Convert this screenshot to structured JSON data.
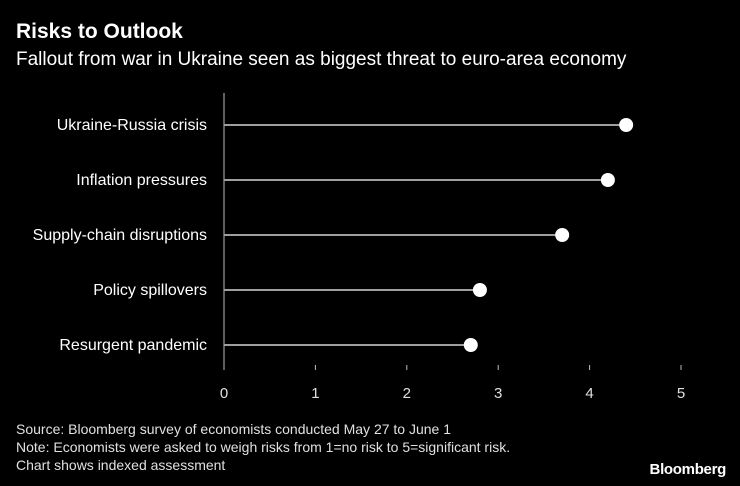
{
  "chart_data": {
    "type": "lollipop",
    "title": "Risks to Outlook",
    "subtitle": "Fallout from war in Ukraine seen as biggest threat to euro-area economy",
    "categories": [
      "Ukraine-Russia crisis",
      "Inflation pressures",
      "Supply-chain disruptions",
      "Policy spillovers",
      "Resurgent pandemic"
    ],
    "values": [
      4.4,
      4.2,
      3.7,
      2.8,
      2.7
    ],
    "x_ticks": [
      "0",
      "1",
      "2",
      "3",
      "4",
      "5"
    ],
    "xlim": [
      0,
      5
    ],
    "xlabel": "",
    "ylabel": ""
  },
  "footer": {
    "source": "Source: Bloomberg survey of economists conducted May 27 to June 1",
    "note": "Note: Economists were asked to weigh risks from 1=no risk to 5=significant risk.",
    "note2": "Chart shows indexed assessment",
    "brand": "Bloomberg"
  }
}
